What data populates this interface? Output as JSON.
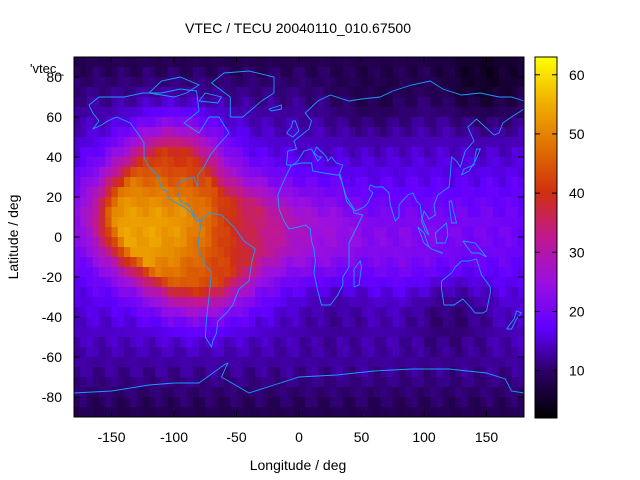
{
  "chart_data": {
    "type": "heatmap",
    "title": "VTEC / TECU 20040110_010.67500",
    "xlabel": "Longitude / deg",
    "ylabel": "Latitude / deg",
    "xlim": [
      -180,
      180
    ],
    "ylim": [
      -90,
      90
    ],
    "x_ticks": [
      -150,
      -100,
      -50,
      0,
      50,
      100,
      150
    ],
    "y_ticks": [
      -80,
      -60,
      -40,
      -20,
      0,
      20,
      40,
      60,
      80
    ],
    "colorbar": {
      "min": 2,
      "max": 63,
      "ticks": [
        10,
        20,
        30,
        40,
        50,
        60
      ]
    },
    "key_label": "'vtec_",
    "grid": false,
    "overlay": "coastlines",
    "field_features": [
      {
        "lon": -100,
        "lat": 5,
        "vtec": 60
      },
      {
        "lon": -125,
        "lat": 10,
        "vtec": 52
      },
      {
        "lon": -80,
        "lat": -15,
        "vtec": 42
      },
      {
        "lon": -100,
        "lat": 35,
        "vtec": 38
      },
      {
        "lon": -40,
        "lat": 5,
        "vtec": 34
      },
      {
        "lon": 20,
        "lat": 0,
        "vtec": 25
      },
      {
        "lon": 90,
        "lat": -5,
        "vtec": 22
      },
      {
        "lon": 150,
        "lat": 0,
        "vtec": 20
      },
      {
        "lon": 30,
        "lat": -40,
        "vtec": 12
      },
      {
        "lon": 120,
        "lat": -40,
        "vtec": 10
      },
      {
        "lon": 60,
        "lat": 75,
        "vtec": 8
      },
      {
        "lon": 150,
        "lat": 80,
        "vtec": 5
      }
    ],
    "colors": {
      "palette": [
        "#000000",
        "#2a0060",
        "#6000ff",
        "#9a10e0",
        "#c01890",
        "#d03010",
        "#e07000",
        "#f0b000",
        "#ffff00"
      ],
      "coastline": "#1a9cff"
    }
  }
}
